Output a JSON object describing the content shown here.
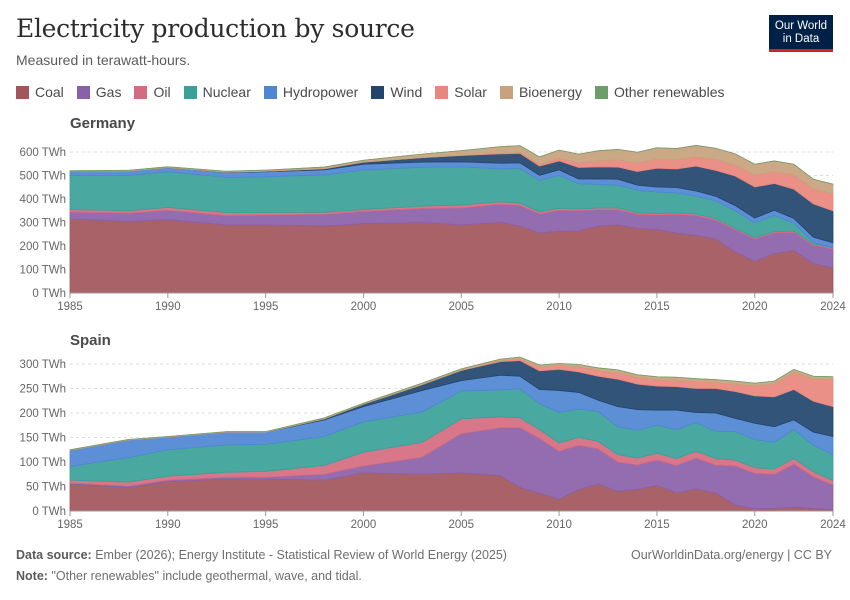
{
  "header": {
    "title": "Electricity production by source",
    "subtitle": "Measured in terawatt-hours."
  },
  "logo": {
    "line1": "Our World",
    "line2": "in Data"
  },
  "footer": {
    "source_label": "Data source:",
    "source_text": "Ember (2026); Energy Institute - Statistical Review of World Energy (2025)",
    "note_label": "Note:",
    "note_text": "\"Other renewables\" include geothermal, wave, and tidal.",
    "url": "OurWorldinData.org/energy | CC BY"
  },
  "chart_data": [
    {
      "type": "area",
      "stacked": true,
      "title": "Germany",
      "unit": "TWh",
      "x": [
        1985,
        1988,
        1990,
        1993,
        1995,
        1998,
        2000,
        2003,
        2005,
        2007,
        2008,
        2009,
        2010,
        2011,
        2012,
        2013,
        2014,
        2015,
        2016,
        2017,
        2018,
        2019,
        2020,
        2021,
        2022,
        2023,
        2024
      ],
      "ylim": [
        0,
        600
      ],
      "yticks": [
        0,
        100,
        200,
        300,
        400,
        500,
        600
      ],
      "ytick_labels": [
        "0 TWh",
        "100 TWh",
        "200 TWh",
        "300 TWh",
        "400 TWh",
        "500 TWh",
        "600 TWh"
      ],
      "xticks": [
        1985,
        1990,
        1995,
        2000,
        2005,
        2010,
        2015,
        2020,
        2024
      ],
      "series": [
        {
          "name": "Coal",
          "color": "#a2565b",
          "values": [
            315,
            305,
            312,
            290,
            290,
            285,
            295,
            300,
            290,
            300,
            285,
            255,
            263,
            265,
            285,
            290,
            275,
            270,
            255,
            245,
            230,
            175,
            135,
            168,
            180,
            125,
            107
          ]
        },
        {
          "name": "Gas",
          "color": "#8a61a9",
          "values": [
            30,
            35,
            40,
            40,
            42,
            50,
            52,
            60,
            72,
            78,
            88,
            82,
            89,
            85,
            70,
            65,
            60,
            62,
            80,
            85,
            80,
            95,
            95,
            88,
            78,
            78,
            80
          ]
        },
        {
          "name": "Oil",
          "color": "#d56b7f",
          "values": [
            10,
            10,
            12,
            12,
            10,
            8,
            8,
            10,
            12,
            10,
            9,
            8,
            8,
            7,
            7,
            7,
            6,
            6,
            6,
            6,
            6,
            5,
            5,
            5,
            5,
            5,
            5
          ]
        },
        {
          "name": "Nuclear",
          "color": "#3aa198",
          "values": [
            145,
            150,
            152,
            150,
            152,
            160,
            168,
            165,
            163,
            140,
            148,
            134,
            140,
            108,
            100,
            97,
            97,
            92,
            85,
            76,
            76,
            75,
            64,
            69,
            35,
            7,
            0
          ]
        },
        {
          "name": "Hydropower",
          "color": "#4f86d3",
          "values": [
            18,
            19,
            18,
            21,
            22,
            21,
            25,
            22,
            21,
            24,
            24,
            22,
            24,
            20,
            24,
            25,
            21,
            21,
            23,
            22,
            20,
            22,
            20,
            22,
            19,
            22,
            22
          ]
        },
        {
          "name": "Wind",
          "color": "#22456e",
          "values": [
            0,
            0,
            0,
            1,
            2,
            5,
            9,
            19,
            27,
            40,
            40,
            39,
            38,
            49,
            51,
            52,
            58,
            80,
            79,
            106,
            110,
            126,
            132,
            114,
            125,
            142,
            136
          ]
        },
        {
          "name": "Solar",
          "color": "#e9877c",
          "values": [
            0,
            0,
            0,
            0,
            0,
            0,
            0,
            0,
            1,
            3,
            4,
            7,
            12,
            20,
            26,
            31,
            36,
            39,
            38,
            39,
            46,
            46,
            50,
            50,
            61,
            62,
            72
          ]
        },
        {
          "name": "Bioenergy",
          "color": "#c7a27c",
          "values": [
            2,
            3,
            3,
            4,
            5,
            7,
            8,
            15,
            20,
            28,
            29,
            32,
            34,
            37,
            42,
            44,
            46,
            48,
            49,
            49,
            48,
            48,
            47,
            46,
            45,
            43,
            41
          ]
        },
        {
          "name": "Other renewables",
          "color": "#6d9d6a",
          "values": [
            0,
            0,
            0,
            0,
            0,
            0,
            0,
            0,
            0,
            0,
            0,
            0,
            0,
            0,
            0,
            0,
            0,
            0,
            0,
            0,
            0,
            0,
            0,
            0,
            0,
            0,
            0
          ]
        }
      ]
    },
    {
      "type": "area",
      "stacked": true,
      "title": "Spain",
      "unit": "TWh",
      "x": [
        1985,
        1988,
        1990,
        1993,
        1995,
        1998,
        2000,
        2003,
        2005,
        2007,
        2008,
        2009,
        2010,
        2011,
        2012,
        2013,
        2014,
        2015,
        2016,
        2017,
        2018,
        2019,
        2020,
        2021,
        2022,
        2023,
        2024
      ],
      "ylim": [
        0,
        300
      ],
      "yticks": [
        0,
        50,
        100,
        150,
        200,
        250,
        300
      ],
      "ytick_labels": [
        "0 TWh",
        "50 TWh",
        "100 TWh",
        "150 TWh",
        "200 TWh",
        "250 TWh",
        "300 TWh"
      ],
      "xticks": [
        1985,
        1990,
        1995,
        2000,
        2005,
        2010,
        2015,
        2020,
        2024
      ],
      "series": [
        {
          "name": "Coal",
          "color": "#a2565b",
          "values": [
            55,
            48,
            60,
            65,
            65,
            63,
            78,
            75,
            78,
            72,
            48,
            36,
            24,
            44,
            55,
            40,
            44,
            52,
            37,
            45,
            37,
            12,
            5,
            5,
            8,
            5,
            3
          ]
        },
        {
          "name": "Gas",
          "color": "#8a61a9",
          "values": [
            2,
            3,
            3,
            4,
            4,
            12,
            14,
            35,
            80,
            98,
            122,
            112,
            98,
            90,
            72,
            60,
            50,
            52,
            56,
            63,
            57,
            80,
            72,
            70,
            88,
            65,
            50
          ]
        },
        {
          "name": "Oil",
          "color": "#d56b7f",
          "values": [
            6,
            8,
            8,
            10,
            12,
            18,
            28,
            30,
            30,
            22,
            20,
            18,
            17,
            16,
            15,
            15,
            14,
            14,
            14,
            14,
            13,
            12,
            11,
            11,
            11,
            10,
            9
          ]
        },
        {
          "name": "Nuclear",
          "color": "#3aa198",
          "values": [
            28,
            50,
            54,
            56,
            55,
            59,
            62,
            62,
            57,
            55,
            59,
            53,
            62,
            58,
            61,
            57,
            57,
            57,
            59,
            58,
            56,
            58,
            58,
            54,
            59,
            54,
            53
          ]
        },
        {
          "name": "Hydropower",
          "color": "#4f86d3",
          "values": [
            33,
            36,
            26,
            26,
            25,
            34,
            31,
            44,
            21,
            30,
            26,
            29,
            45,
            34,
            23,
            41,
            42,
            31,
            40,
            21,
            37,
            27,
            33,
            32,
            20,
            27,
            37
          ]
        },
        {
          "name": "Wind",
          "color": "#22456e",
          "values": [
            0,
            0,
            0,
            0,
            0,
            2,
            5,
            12,
            21,
            28,
            32,
            38,
            43,
            42,
            49,
            56,
            52,
            49,
            48,
            49,
            50,
            55,
            56,
            61,
            62,
            63,
            61
          ]
        },
        {
          "name": "Solar",
          "color": "#e9877c",
          "values": [
            0,
            0,
            0,
            0,
            0,
            0,
            0,
            0,
            0,
            2,
            3,
            8,
            8,
            10,
            12,
            13,
            13,
            13,
            13,
            14,
            12,
            15,
            20,
            26,
            35,
            45,
            56
          ]
        },
        {
          "name": "Bioenergy",
          "color": "#c7a27c",
          "values": [
            1,
            1,
            1,
            1,
            1,
            2,
            2,
            3,
            3,
            3,
            4,
            4,
            4,
            5,
            5,
            6,
            6,
            6,
            6,
            6,
            6,
            6,
            6,
            6,
            6,
            6,
            5
          ]
        },
        {
          "name": "Other renewables",
          "color": "#6d9d6a",
          "values": [
            0,
            0,
            0,
            0,
            0,
            0,
            0,
            0,
            0,
            0,
            0,
            0,
            0,
            0,
            0,
            0,
            0,
            0,
            0,
            0,
            0,
            0,
            0,
            0,
            0,
            0,
            0
          ]
        }
      ]
    }
  ]
}
